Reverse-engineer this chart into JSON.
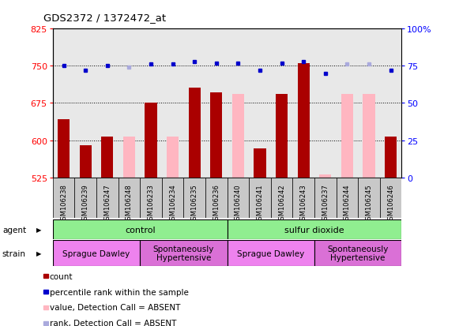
{
  "title": "GDS2372 / 1372472_at",
  "samples": [
    "GSM106238",
    "GSM106239",
    "GSM106247",
    "GSM106248",
    "GSM106233",
    "GSM106234",
    "GSM106235",
    "GSM106236",
    "GSM106240",
    "GSM106241",
    "GSM106242",
    "GSM106243",
    "GSM106237",
    "GSM106244",
    "GSM106245",
    "GSM106246"
  ],
  "count_values": [
    643,
    590,
    607,
    null,
    676,
    null,
    706,
    697,
    null,
    583,
    693,
    756,
    null,
    null,
    null,
    607
  ],
  "count_absent": [
    null,
    null,
    null,
    607,
    null,
    607,
    null,
    null,
    693,
    null,
    null,
    null,
    530,
    693,
    693,
    null
  ],
  "rank_values": [
    75,
    72,
    75,
    null,
    76,
    76,
    78,
    77,
    77,
    72,
    77,
    78,
    70,
    null,
    null,
    72
  ],
  "rank_absent": [
    null,
    null,
    null,
    74,
    null,
    null,
    null,
    null,
    null,
    null,
    null,
    null,
    null,
    76,
    76,
    null
  ],
  "ylim_left": [
    525,
    825
  ],
  "ylim_right": [
    0,
    100
  ],
  "yticks_left": [
    525,
    600,
    675,
    750,
    825
  ],
  "yticks_right": [
    0,
    25,
    50,
    75,
    100
  ],
  "ytick_labels_right": [
    "0",
    "25",
    "50",
    "75",
    "100%"
  ],
  "agent_groups": [
    {
      "label": "control",
      "start": 0,
      "end": 8,
      "color": "#90EE90"
    },
    {
      "label": "sulfur dioxide",
      "start": 8,
      "end": 16,
      "color": "#90EE90"
    }
  ],
  "strain_groups": [
    {
      "label": "Sprague Dawley",
      "start": 0,
      "end": 4,
      "color": "#EE82EE"
    },
    {
      "label": "Spontaneously\nHypertensive",
      "start": 4,
      "end": 8,
      "color": "#DA70D6"
    },
    {
      "label": "Sprague Dawley",
      "start": 8,
      "end": 12,
      "color": "#EE82EE"
    },
    {
      "label": "Spontaneously\nHypertensive",
      "start": 12,
      "end": 16,
      "color": "#DA70D6"
    }
  ],
  "bar_color_present": "#AA0000",
  "bar_color_absent": "#FFB6C1",
  "dot_color_present": "#0000CC",
  "dot_color_absent": "#AAAADD",
  "bar_width": 0.55,
  "plot_bg": "#E8E8E8",
  "label_bg": "#C8C8C8",
  "legend_items": [
    {
      "label": "count",
      "color": "#AA0000"
    },
    {
      "label": "percentile rank within the sample",
      "color": "#0000CC"
    },
    {
      "label": "value, Detection Call = ABSENT",
      "color": "#FFB6C1"
    },
    {
      "label": "rank, Detection Call = ABSENT",
      "color": "#AAAADD"
    }
  ]
}
